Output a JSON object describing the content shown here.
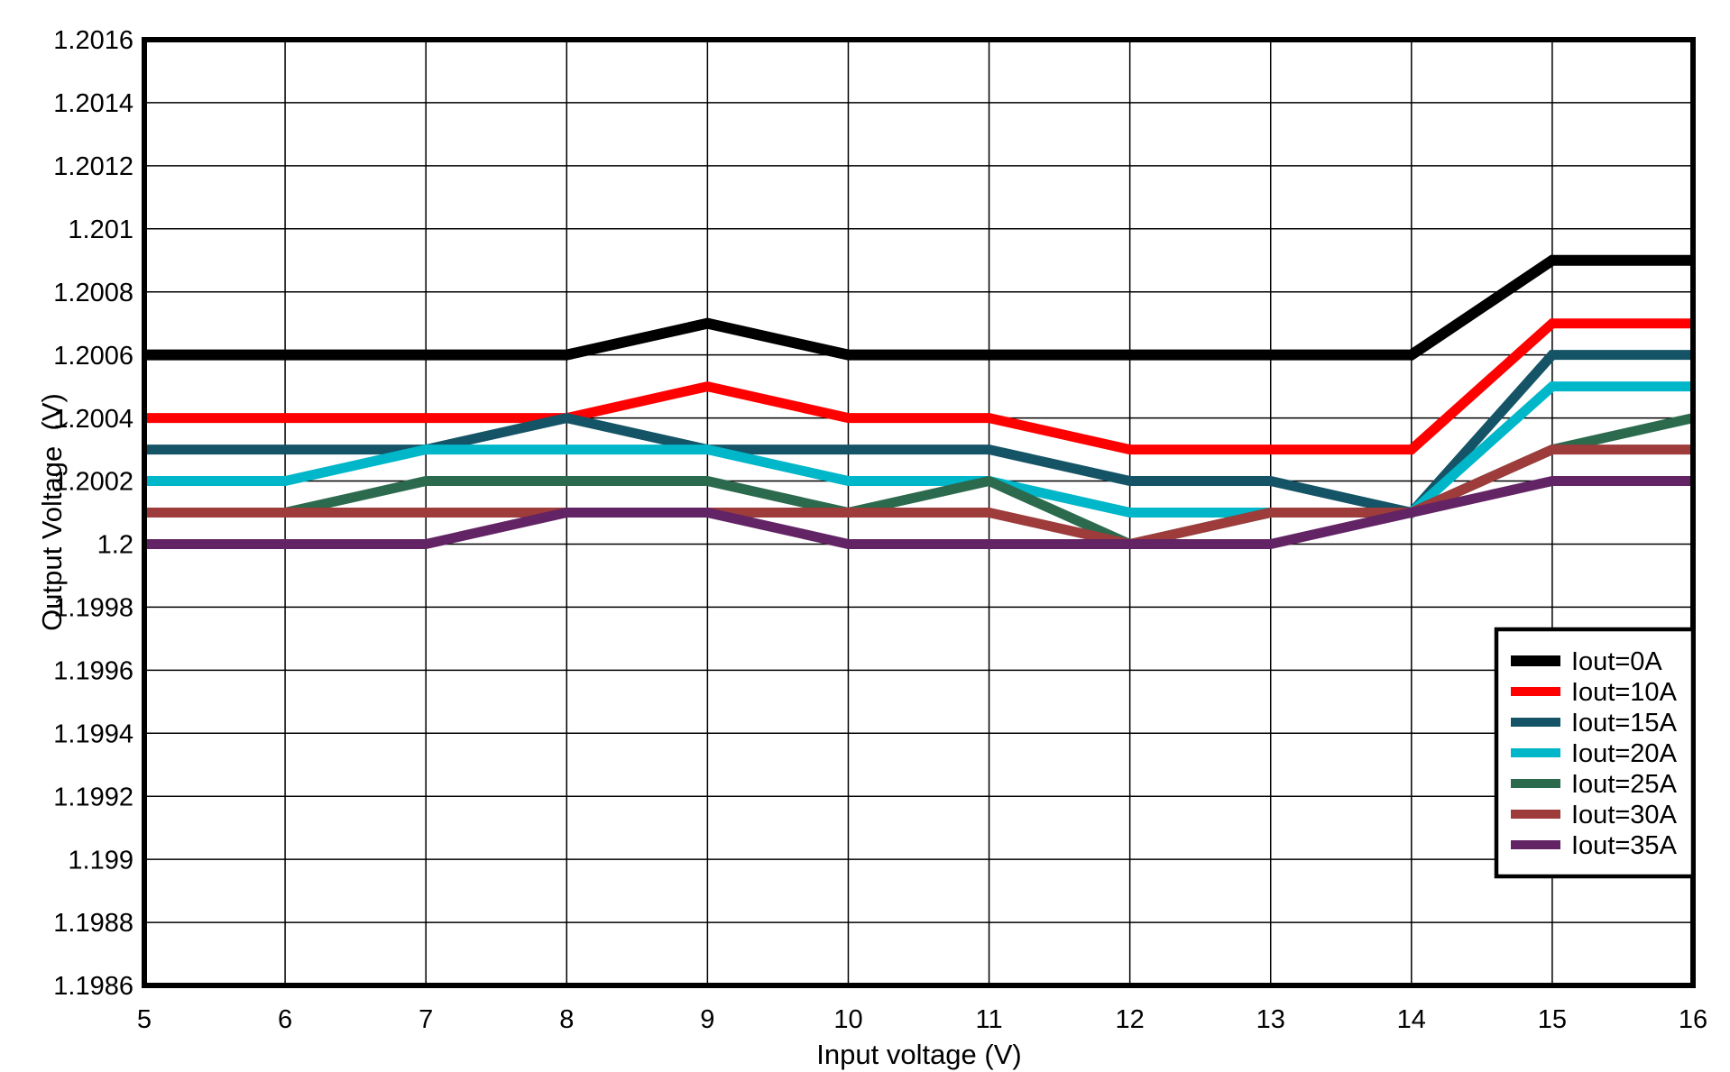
{
  "chart_data": {
    "type": "line",
    "title": "",
    "xlabel": "Input voltage (V)",
    "ylabel": "Output Voltage  (V)",
    "grid": true,
    "background_color": "#ffffff",
    "axis_color": "#000000",
    "gridline_color": "#000000",
    "xlim": [
      5,
      16
    ],
    "ylim": [
      1.1986,
      1.2016
    ],
    "x_tick_labels": [
      "5",
      "6",
      "7",
      "8",
      "9",
      "10",
      "11",
      "12",
      "13",
      "14",
      "15",
      "16"
    ],
    "y_tick_labels": [
      "1.2016",
      "1.2014",
      "1.2012",
      "1.201",
      "1.2008",
      "1.2006",
      "1.2004",
      "1.2002",
      "1.2",
      "1.1998",
      "1.1996",
      "1.1994",
      "1.1992",
      "1.199",
      "1.1988",
      "1.1986"
    ],
    "y_tick_values": [
      1.2016,
      1.2014,
      1.2012,
      1.201,
      1.2008,
      1.2006,
      1.2004,
      1.2002,
      1.2,
      1.1998,
      1.1996,
      1.1994,
      1.1992,
      1.199,
      1.1988,
      1.1986
    ],
    "x": [
      5,
      6,
      7,
      8,
      9,
      10,
      11,
      12,
      13,
      14,
      15,
      16
    ],
    "legend_position": "lower-right-inside",
    "legend_border_color": "#000000",
    "legend_background": "#ffffff",
    "series": [
      {
        "name": "Iout=0A",
        "color": "#000000",
        "values": [
          1.2006,
          1.2006,
          1.2006,
          1.2006,
          1.2007,
          1.2006,
          1.2006,
          1.2006,
          1.2006,
          1.2006,
          1.2009,
          1.2009
        ]
      },
      {
        "name": "Iout=10A",
        "color": "#ff0000",
        "values": [
          1.2004,
          1.2004,
          1.2004,
          1.2004,
          1.2005,
          1.2004,
          1.2004,
          1.2003,
          1.2003,
          1.2003,
          1.2007,
          1.2007
        ]
      },
      {
        "name": "Iout=15A",
        "color": "#155466",
        "values": [
          1.2003,
          1.2003,
          1.2003,
          1.2004,
          1.2003,
          1.2003,
          1.2003,
          1.2002,
          1.2002,
          1.2001,
          1.2006,
          1.2006
        ]
      },
      {
        "name": "Iout=20A",
        "color": "#00b6c9",
        "values": [
          1.2002,
          1.2002,
          1.2003,
          1.2003,
          1.2003,
          1.2002,
          1.2002,
          1.2001,
          1.2001,
          1.2001,
          1.2005,
          1.2005
        ]
      },
      {
        "name": "Iout=25A",
        "color": "#2b6a4d",
        "values": [
          1.2001,
          1.2001,
          1.2002,
          1.2002,
          1.2002,
          1.2001,
          1.2002,
          1.2,
          1.2001,
          1.2001,
          1.2003,
          1.2004
        ]
      },
      {
        "name": "Iout=30A",
        "color": "#9e3b3b",
        "values": [
          1.2001,
          1.2001,
          1.2001,
          1.2001,
          1.2001,
          1.2001,
          1.2001,
          1.2,
          1.2001,
          1.2001,
          1.2003,
          1.2003
        ]
      },
      {
        "name": "Iout=35A",
        "color": "#622465",
        "values": [
          1.2,
          1.2,
          1.2,
          1.2001,
          1.2001,
          1.2,
          1.2,
          1.2,
          1.2,
          1.2001,
          1.2002,
          1.2002
        ]
      }
    ]
  }
}
